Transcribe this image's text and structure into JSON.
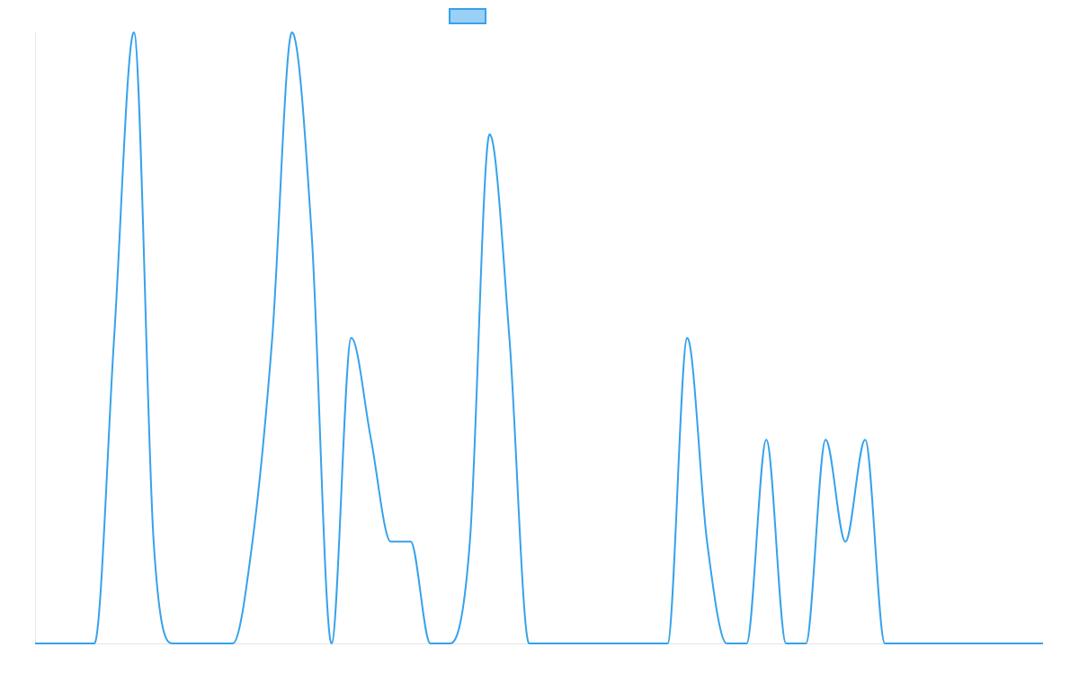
{
  "chart_data": {
    "type": "line",
    "title": "",
    "xlabel": "",
    "ylabel": "",
    "grid": false,
    "legend_position": "top-center",
    "x": [
      0,
      1,
      2,
      3,
      4,
      5,
      6,
      7,
      8,
      9,
      10,
      11,
      12,
      13,
      14,
      15,
      16,
      17,
      18,
      19,
      20,
      21,
      22,
      23,
      24,
      25,
      26,
      27,
      28,
      29,
      30,
      31,
      32,
      33,
      34,
      35,
      36,
      37,
      38,
      39,
      40,
      41,
      42,
      43,
      44,
      45,
      46,
      47,
      48,
      49,
      50,
      51
    ],
    "ylim": [
      0,
      6
    ],
    "series": [
      {
        "name": "",
        "color": "#36a2eb",
        "fill_color": "#9ad0f5",
        "values": [
          0,
          0,
          0,
          0,
          3,
          6,
          1,
          0,
          0,
          0,
          0,
          1,
          3,
          6,
          4,
          0,
          3,
          2,
          1,
          1,
          0,
          0,
          1,
          5,
          3,
          0,
          0,
          0,
          0,
          0,
          0,
          0,
          0,
          3,
          1,
          0,
          0,
          2,
          0,
          0,
          2,
          1,
          2,
          0,
          0,
          0,
          0,
          0,
          0,
          0,
          0,
          0
        ]
      }
    ]
  }
}
